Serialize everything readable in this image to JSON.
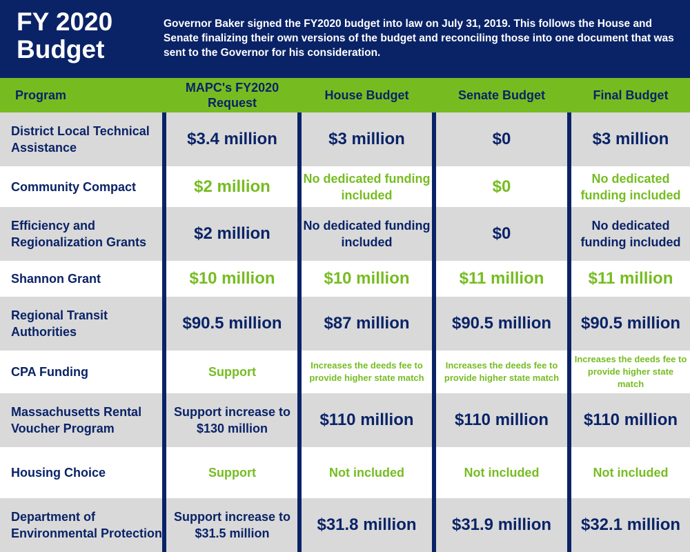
{
  "header": {
    "title_line1": "FY 2020",
    "title_line2": "Budget",
    "intro": "Governor Baker signed the FY2020 budget into law on July 31, 2019. This follows the House and Senate finalizing their own versions of the budget and reconciling those into one document that was sent to the Governor for his consideration."
  },
  "columns": {
    "program": "Program",
    "request_line1": "MAPC's FY2020",
    "request_line2": "Request",
    "house": "House Budget",
    "senate": "Senate Budget",
    "final": "Final Budget"
  },
  "colors": {
    "navy": "#0a2367",
    "green": "#76bc21",
    "gray_row": "#d9d9d9"
  },
  "rows": [
    {
      "program": "District Local Technical Assistance",
      "request": "$3.4 million",
      "house": "$3 million",
      "senate": "$0",
      "final": "$3 million"
    },
    {
      "program": "Community Compact",
      "request": "$2 million",
      "house": "No dedicated funding included",
      "senate": "$0",
      "final": "No dedicated funding included"
    },
    {
      "program": "Efficiency and Regionalization Grants",
      "request": "$2 million",
      "house": "No dedicated funding included",
      "senate": "$0",
      "final": "No dedicated funding included"
    },
    {
      "program": "Shannon Grant",
      "request": "$10 million",
      "house": "$10 million",
      "senate": "$11 million",
      "final": "$11 million"
    },
    {
      "program": "Regional Transit Authorities",
      "request": "$90.5 million",
      "house": "$87 million",
      "senate": "$90.5 million",
      "final": "$90.5 million"
    },
    {
      "program": "CPA Funding",
      "request": "Support",
      "house": "Increases the deeds fee to provide higher state match",
      "senate": "Increases the deeds fee to provide higher state match",
      "final": "Increases the deeds fee to provide higher state match"
    },
    {
      "program": "Massachusetts Rental Voucher Program",
      "request": "Support increase to $130 million",
      "house": "$110 million",
      "senate": "$110 million",
      "final": "$110 million"
    },
    {
      "program": "Housing Choice",
      "request": "Support",
      "house": "Not included",
      "senate": "Not included",
      "final": "Not included"
    },
    {
      "program": "Department of Environmental Protection",
      "request": "Support increase to $31.5 million",
      "house": "$31.8 million",
      "senate": "$31.9 million",
      "final": "$32.1 million"
    }
  ]
}
